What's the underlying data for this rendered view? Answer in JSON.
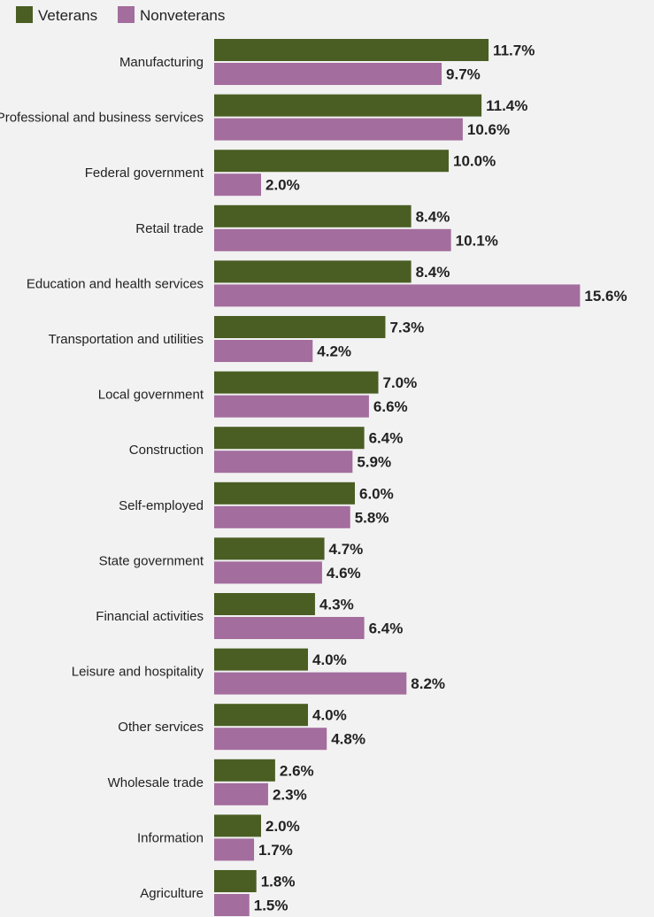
{
  "chart_data": {
    "type": "bar",
    "orientation": "horizontal",
    "unit": "%",
    "legend": "top-left",
    "grid": false,
    "xlim": [
      0,
      16
    ],
    "categories": [
      "Manufacturing",
      "Professional and business services",
      "Federal government",
      "Retail trade",
      "Education and health services",
      "Transportation and utilities",
      "Local government",
      "Construction",
      "Self-employed",
      "State government",
      "Financial activities",
      "Leisure and hospitality",
      "Other services",
      "Wholesale trade",
      "Information",
      "Agriculture"
    ],
    "series": [
      {
        "name": "Veterans",
        "color": "#4a5e23",
        "values": [
          11.7,
          11.4,
          10.0,
          8.4,
          8.4,
          7.3,
          7.0,
          6.4,
          6.0,
          4.7,
          4.3,
          4.0,
          4.0,
          2.6,
          2.0,
          1.8
        ],
        "labels": [
          "11.7%",
          "11.4%",
          "10.0%",
          "8.4%",
          "8.4%",
          "7.3%",
          "7.0%",
          "6.4%",
          "6.0%",
          "4.7%",
          "4.3%",
          "4.0%",
          "4.0%",
          "2.6%",
          "2.0%",
          "1.8%"
        ]
      },
      {
        "name": "Nonveterans",
        "color": "#a36d9d",
        "values": [
          9.7,
          10.6,
          2.0,
          10.1,
          15.6,
          4.2,
          6.6,
          5.9,
          5.8,
          4.6,
          6.4,
          8.2,
          4.8,
          2.3,
          1.7,
          1.5
        ],
        "labels": [
          "9.7%",
          "10.6%",
          "2.0%",
          "10.1%",
          "15.6%",
          "4.2%",
          "6.6%",
          "5.9%",
          "5.8%",
          "4.6%",
          "6.4%",
          "8.2%",
          "4.8%",
          "2.3%",
          "1.7%",
          "1.5%"
        ]
      }
    ]
  }
}
